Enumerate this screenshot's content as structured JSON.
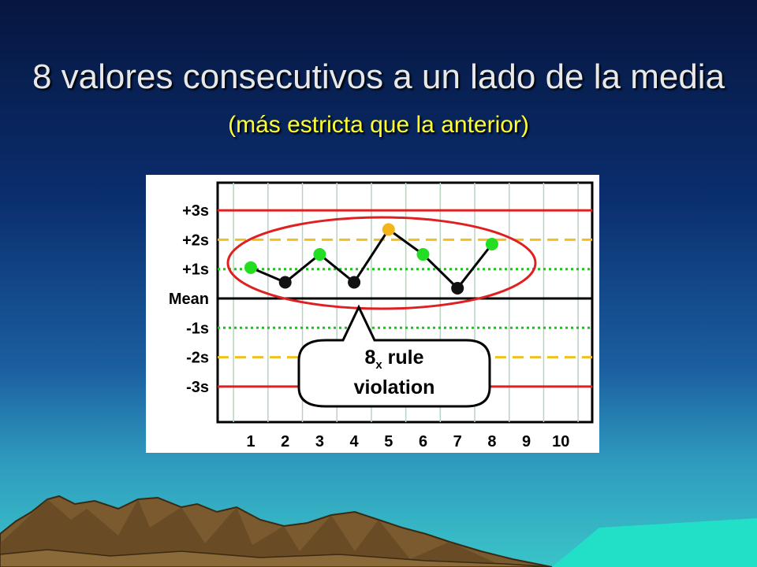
{
  "slide": {
    "title_main": "8 valores consecutivos a un lado de la media",
    "title_sub": "(más estricta que la anterior)"
  },
  "colors": {
    "limit_3s": "#e02020",
    "limit_2s": "#f0c020",
    "limit_1s": "#20c020",
    "point_green": "#22dd22",
    "point_black": "#111111",
    "point_yellow": "#f2b61a",
    "ellipse": "#e02020"
  },
  "chart_data": {
    "type": "line",
    "y_levels": [
      {
        "label": "+3s",
        "value": 3
      },
      {
        "label": "+2s",
        "value": 2
      },
      {
        "label": "+1s",
        "value": 1
      },
      {
        "label": "Mean",
        "value": 0
      },
      {
        "label": "-1s",
        "value": -1
      },
      {
        "label": "-2s",
        "value": -2
      },
      {
        "label": "-3s",
        "value": -3
      }
    ],
    "x": [
      1,
      2,
      3,
      4,
      5,
      6,
      7,
      8,
      9,
      10
    ],
    "x_tick_labels": [
      "1",
      "2",
      "3",
      "4",
      "5",
      "6",
      "7",
      "8",
      "9",
      "10"
    ],
    "points": [
      {
        "x": 1,
        "y": 1.05,
        "color": "green"
      },
      {
        "x": 2,
        "y": 0.55,
        "color": "black"
      },
      {
        "x": 3,
        "y": 1.5,
        "color": "green"
      },
      {
        "x": 4,
        "y": 0.55,
        "color": "black"
      },
      {
        "x": 5,
        "y": 2.35,
        "color": "yellow"
      },
      {
        "x": 6,
        "y": 1.5,
        "color": "green"
      },
      {
        "x": 7,
        "y": 0.35,
        "color": "black"
      },
      {
        "x": 8,
        "y": 1.85,
        "color": "green"
      }
    ],
    "ylim": [
      -3.6,
      3.6
    ],
    "xlim": [
      0.5,
      10.5
    ],
    "callout": {
      "main": "8",
      "subscript": "x",
      "rest": " rule",
      "line2": "violation"
    }
  }
}
